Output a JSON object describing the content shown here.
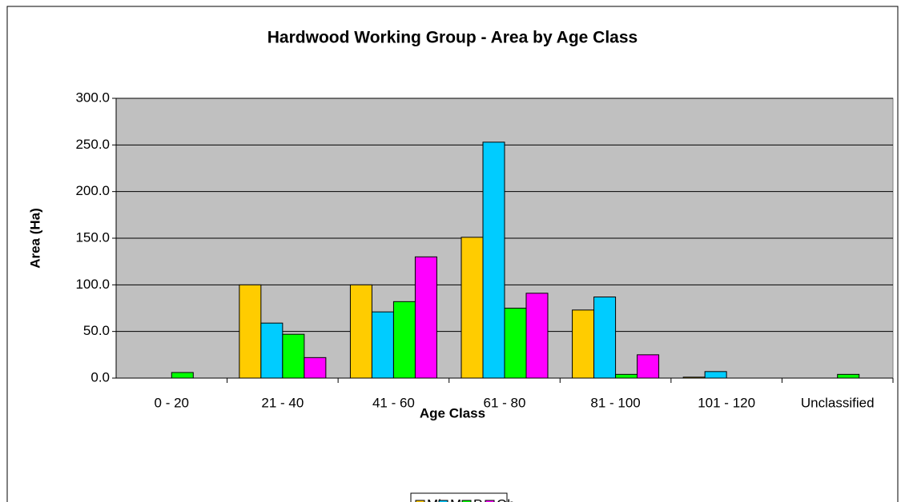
{
  "chart_data": {
    "type": "bar",
    "title": "Hardwood Working Group - Area by Age Class",
    "x_label": "Age Class",
    "y_label": "Area (Ha)",
    "categories": [
      "0 - 20",
      "21 - 40",
      "41 - 60",
      "61 - 80",
      "81 - 100",
      "101 - 120",
      "Unclassified"
    ],
    "series": [
      {
        "name": "Mh",
        "color": "#FFCC00",
        "values": [
          0,
          100,
          100,
          151,
          73,
          1,
          0
        ]
      },
      {
        "name": "Ms",
        "color": "#00CCFF",
        "values": [
          0,
          59,
          71,
          253,
          87,
          7,
          0
        ]
      },
      {
        "name": "Po",
        "color": "#00FF00",
        "values": [
          6,
          47,
          82,
          75,
          4,
          0,
          4
        ]
      },
      {
        "name": "Oh",
        "color": "#FF00FF",
        "values": [
          0,
          22,
          130,
          91,
          25,
          0,
          0
        ]
      }
    ],
    "ylim": [
      0,
      300
    ],
    "yticks": [
      {
        "value": 0,
        "label": "0.0"
      },
      {
        "value": 50,
        "label": "50.0"
      },
      {
        "value": 100,
        "label": "100.0"
      },
      {
        "value": 150,
        "label": "150.0"
      },
      {
        "value": 200,
        "label": "200.0"
      },
      {
        "value": 250,
        "label": "250.0"
      },
      {
        "value": 300,
        "label": "300.0"
      }
    ],
    "grid": true,
    "legend": "bottom"
  }
}
